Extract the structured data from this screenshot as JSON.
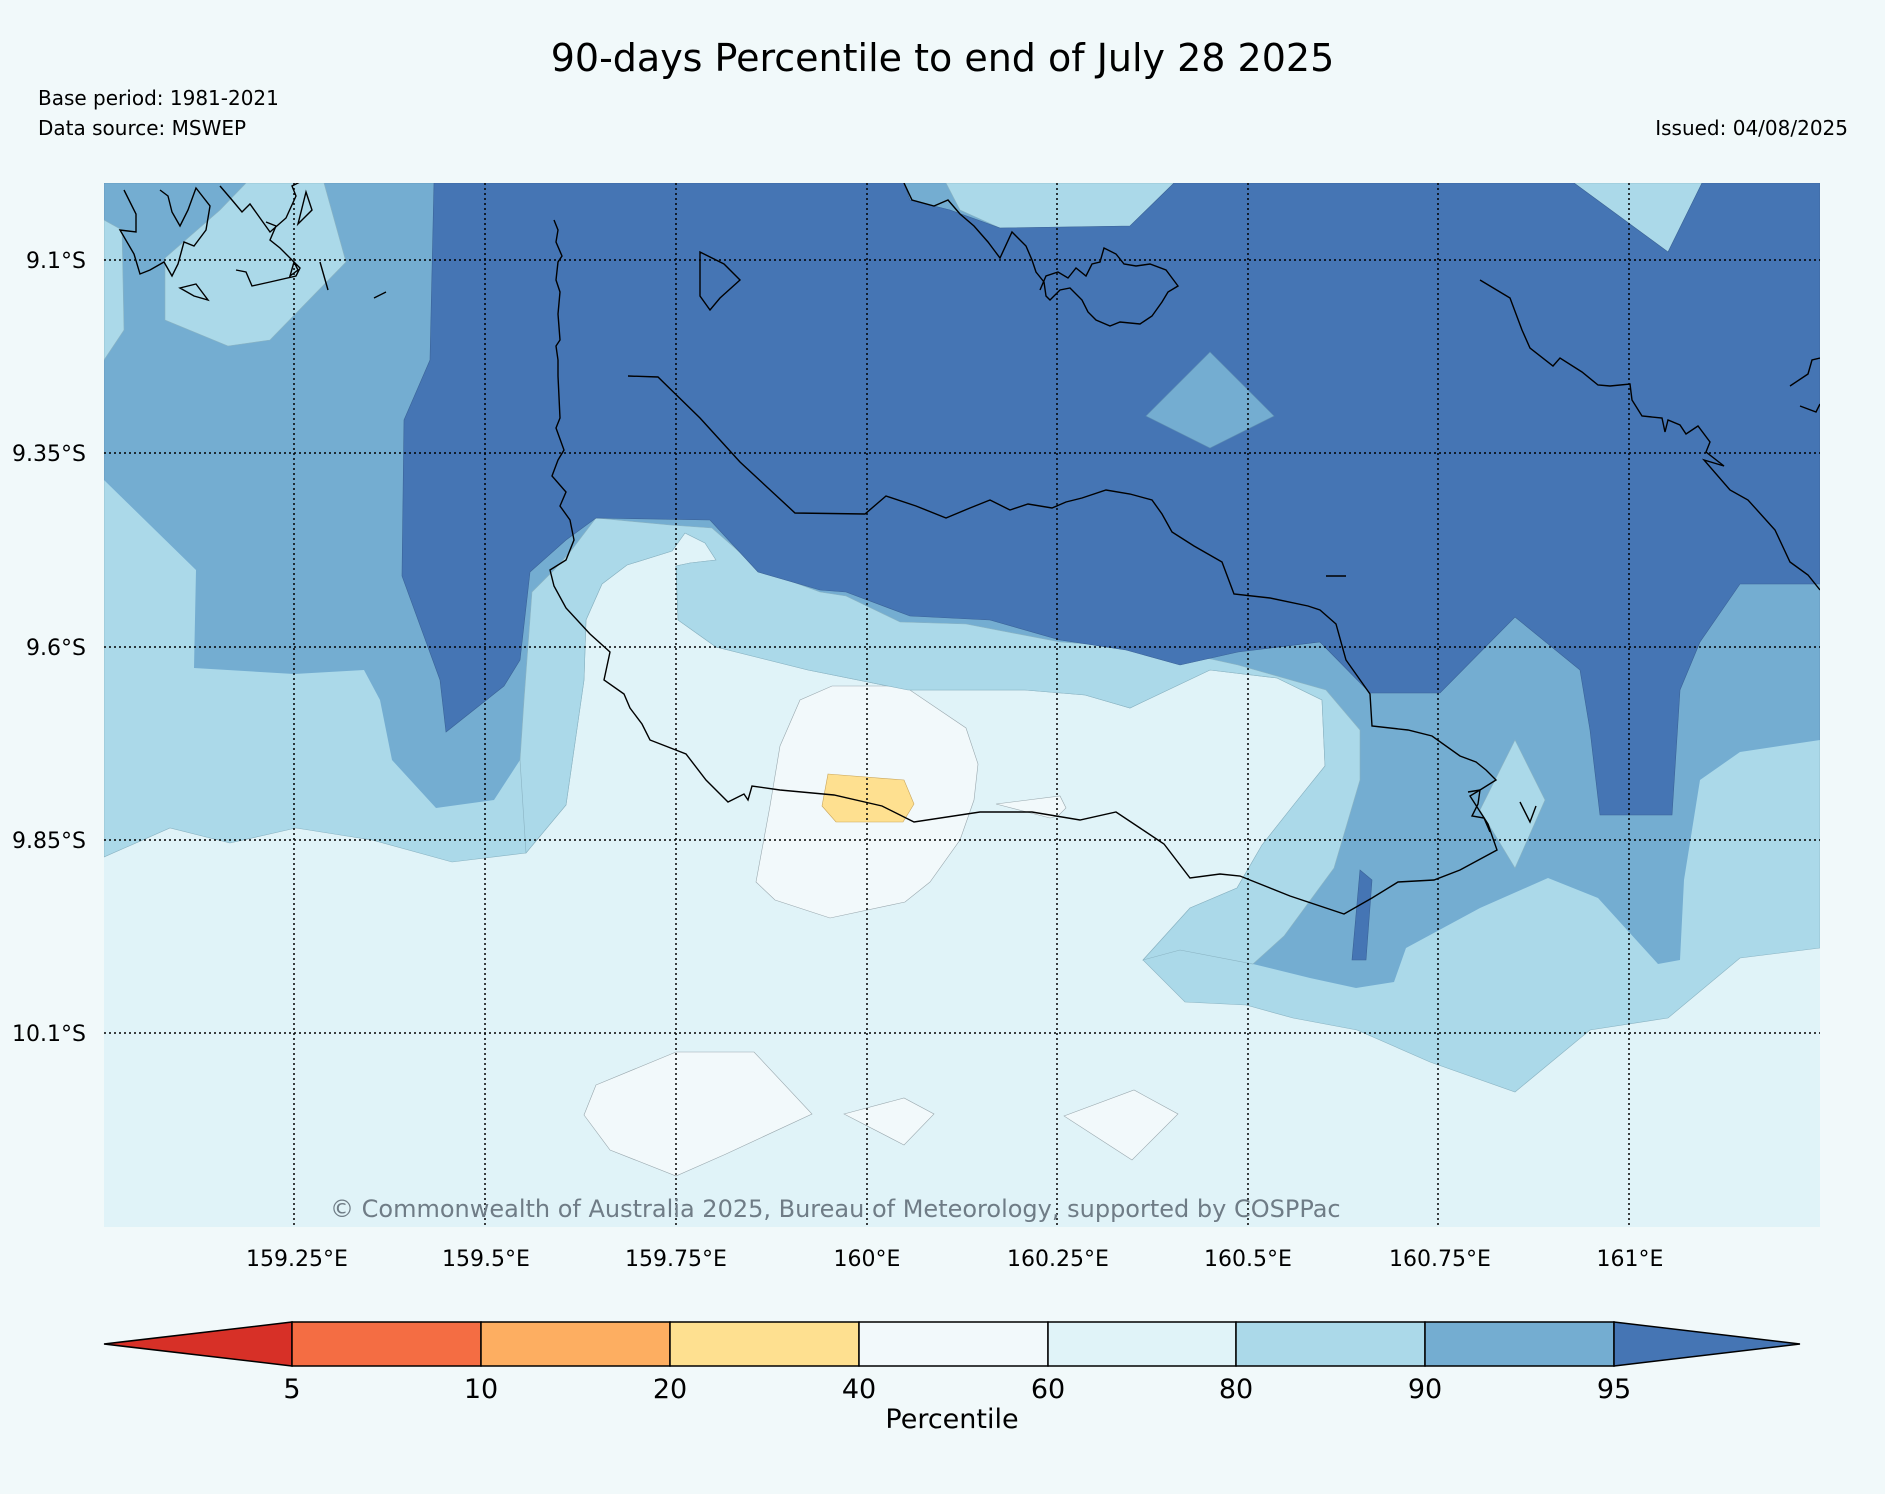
{
  "title": "90-days Percentile to end of July 28 2025",
  "base_period": "Base period: 1981-2021",
  "data_source": "Data source: MSWEP",
  "issued": "Issued: 04/08/2025",
  "copyright": "© Commonwealth of Australia 2025, Bureau of Meteorology, supported by COSPPac",
  "lat_labels": [
    "9.1°S",
    "9.35°S",
    "9.6°S",
    "9.85°S",
    "10.1°S"
  ],
  "lon_labels": [
    "159.25°E",
    "159.5°E",
    "159.75°E",
    "160°E",
    "160.25°E",
    "160.5°E",
    "160.75°E",
    "161°E"
  ],
  "colorbar": {
    "label": "Percentile",
    "ticks": [
      "5",
      "10",
      "20",
      "40",
      "60",
      "80",
      "90",
      "95"
    ],
    "colors": {
      "below_5": "#d73027",
      "5_10": "#f46d43",
      "10_20": "#fdae61",
      "20_40": "#fee090",
      "40_60": "#f2f9fb",
      "60_80": "#e0f3f8",
      "80_90": "#abd9e9",
      "90_95": "#74add1",
      "above_95": "#4575b4"
    }
  }
}
